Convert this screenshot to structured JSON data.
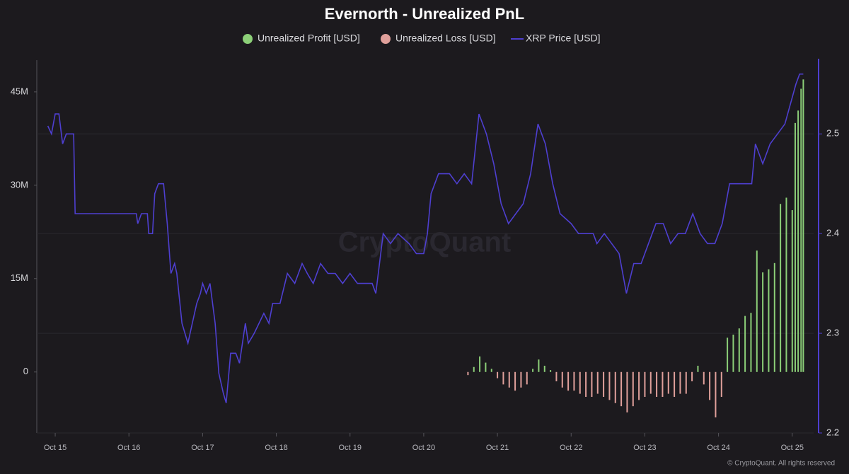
{
  "chart_data": {
    "type": "combo",
    "title": "Evernorth - Unrealized PnL",
    "watermark": "CryptoQuant",
    "footer": "© CryptoQuant. All rights reserved",
    "xlim": [
      14.75,
      25.29
    ],
    "xticks": [
      {
        "value": 15,
        "label": "Oct 15"
      },
      {
        "value": 16,
        "label": "Oct 16"
      },
      {
        "value": 17,
        "label": "Oct 17"
      },
      {
        "value": 18,
        "label": "Oct 18"
      },
      {
        "value": 19,
        "label": "Oct 19"
      },
      {
        "value": 20,
        "label": "Oct 20"
      },
      {
        "value": 21,
        "label": "Oct 21"
      },
      {
        "value": 22,
        "label": "Oct 22"
      },
      {
        "value": 23,
        "label": "Oct 23"
      },
      {
        "value": 24,
        "label": "Oct 24"
      },
      {
        "value": 25,
        "label": "Oct 25"
      }
    ],
    "ylim": [
      -9800000,
      50100000
    ],
    "yticks": [
      {
        "value": 0,
        "label": "0"
      },
      {
        "value": 15000000,
        "label": "15M"
      },
      {
        "value": 30000000,
        "label": "30M"
      },
      {
        "value": 45000000,
        "label": "45M"
      }
    ],
    "y2lim": [
      2.2,
      2.574
    ],
    "y2ticks": [
      2.2,
      2.3,
      2.4,
      2.5
    ],
    "grid": true,
    "x": [
      20.6,
      20.68,
      20.76,
      20.84,
      20.92,
      21.0,
      21.08,
      21.16,
      21.24,
      21.32,
      21.4,
      21.48,
      21.56,
      21.64,
      21.72,
      21.8,
      21.88,
      21.96,
      22.04,
      22.12,
      22.2,
      22.28,
      22.36,
      22.44,
      22.52,
      22.6,
      22.68,
      22.76,
      22.84,
      22.92,
      23.0,
      23.08,
      23.16,
      23.24,
      23.32,
      23.4,
      23.48,
      23.56,
      23.64,
      23.72,
      23.8,
      23.88,
      23.96,
      24.04,
      24.12,
      24.2,
      24.28,
      24.36,
      24.44,
      24.52,
      24.6,
      24.68,
      24.76,
      24.84,
      24.92,
      25.0,
      25.04,
      25.08,
      25.12,
      25.15
    ],
    "series": [
      {
        "name": "Unrealized Profit [USD]",
        "type": "bar",
        "color": "#8ccf78",
        "values": [
          null,
          800000,
          2500000,
          1500000,
          500000,
          null,
          null,
          null,
          null,
          null,
          null,
          500000,
          2000000,
          1000000,
          300000,
          null,
          null,
          null,
          null,
          null,
          null,
          null,
          null,
          null,
          null,
          null,
          null,
          null,
          null,
          null,
          null,
          null,
          null,
          null,
          null,
          null,
          null,
          null,
          null,
          1000000,
          null,
          null,
          null,
          null,
          5500000,
          6000000,
          7000000,
          9000000,
          9500000,
          19500000,
          16000000,
          16500000,
          17500000,
          27000000,
          28000000,
          26000000,
          40000000,
          42000000,
          45500000,
          47000000
        ]
      },
      {
        "name": "Unrealized Loss [USD]",
        "type": "bar",
        "color": "#e0a09b",
        "values": [
          -500000,
          null,
          null,
          null,
          null,
          -1000000,
          -2000000,
          -2500000,
          -3000000,
          -2500000,
          -2000000,
          null,
          null,
          null,
          null,
          -1500000,
          -2500000,
          -3000000,
          -3000000,
          -3500000,
          -4000000,
          -4000000,
          -3500000,
          -4000000,
          -4500000,
          -5000000,
          -5500000,
          -6500000,
          -5500000,
          -4500000,
          -4000000,
          -3500000,
          -4000000,
          -4000000,
          -3500000,
          -4000000,
          -3500000,
          -3500000,
          -1500000,
          null,
          -2000000,
          -4500000,
          -7300000,
          -4000000,
          null,
          null,
          null,
          null,
          null,
          null,
          null,
          null,
          null,
          null,
          null,
          null,
          null,
          null,
          null,
          null
        ]
      },
      {
        "name": "XRP Price [USD]",
        "type": "line",
        "axis": "y2",
        "color": "#4e3fd0",
        "x": [
          14.9,
          14.95,
          15.0,
          15.05,
          15.1,
          15.15,
          15.25,
          15.27,
          16.1,
          16.12,
          16.17,
          16.25,
          16.27,
          16.32,
          16.35,
          16.4,
          16.47,
          16.52,
          16.57,
          16.62,
          16.65,
          16.72,
          16.8,
          16.86,
          16.92,
          16.97,
          17.0,
          17.05,
          17.1,
          17.17,
          17.22,
          17.28,
          17.32,
          17.38,
          17.45,
          17.5,
          17.58,
          17.62,
          17.7,
          17.83,
          17.9,
          17.95,
          18.05,
          18.15,
          18.25,
          18.35,
          18.42,
          18.5,
          18.6,
          18.7,
          18.8,
          18.9,
          19.0,
          19.1,
          19.3,
          19.35,
          19.45,
          19.55,
          19.65,
          19.8,
          19.9,
          20.0,
          20.05,
          20.1,
          20.2,
          20.35,
          20.45,
          20.55,
          20.65,
          20.75,
          20.85,
          20.95,
          21.05,
          21.15,
          21.25,
          21.35,
          21.45,
          21.55,
          21.65,
          21.75,
          21.85,
          22.0,
          22.1,
          22.3,
          22.35,
          22.45,
          22.55,
          22.65,
          22.7,
          22.75,
          22.85,
          22.95,
          23.05,
          23.15,
          23.25,
          23.35,
          23.45,
          23.55,
          23.65,
          23.75,
          23.85,
          23.95,
          24.05,
          24.15,
          24.25,
          24.45,
          24.5,
          24.6,
          24.7,
          24.8,
          24.9,
          25.05,
          25.1,
          25.15
        ],
        "values": [
          2.508,
          2.5,
          2.52,
          2.52,
          2.49,
          2.5,
          2.5,
          2.42,
          2.42,
          2.41,
          2.42,
          2.42,
          2.4,
          2.4,
          2.44,
          2.45,
          2.45,
          2.41,
          2.36,
          2.37,
          2.36,
          2.31,
          2.29,
          2.31,
          2.33,
          2.34,
          2.35,
          2.34,
          2.35,
          2.31,
          2.26,
          2.24,
          2.23,
          2.28,
          2.28,
          2.27,
          2.31,
          2.29,
          2.3,
          2.32,
          2.31,
          2.33,
          2.33,
          2.36,
          2.35,
          2.37,
          2.36,
          2.35,
          2.37,
          2.36,
          2.36,
          2.35,
          2.36,
          2.35,
          2.35,
          2.34,
          2.4,
          2.39,
          2.4,
          2.39,
          2.38,
          2.38,
          2.4,
          2.44,
          2.46,
          2.46,
          2.45,
          2.46,
          2.45,
          2.52,
          2.5,
          2.47,
          2.43,
          2.41,
          2.42,
          2.43,
          2.46,
          2.51,
          2.49,
          2.45,
          2.42,
          2.41,
          2.4,
          2.4,
          2.39,
          2.4,
          2.39,
          2.38,
          2.36,
          2.34,
          2.37,
          2.37,
          2.39,
          2.41,
          2.41,
          2.39,
          2.4,
          2.4,
          2.42,
          2.4,
          2.39,
          2.39,
          2.41,
          2.45,
          2.45,
          2.45,
          2.49,
          2.47,
          2.49,
          2.5,
          2.51,
          2.55,
          2.56,
          2.56
        ]
      }
    ]
  }
}
